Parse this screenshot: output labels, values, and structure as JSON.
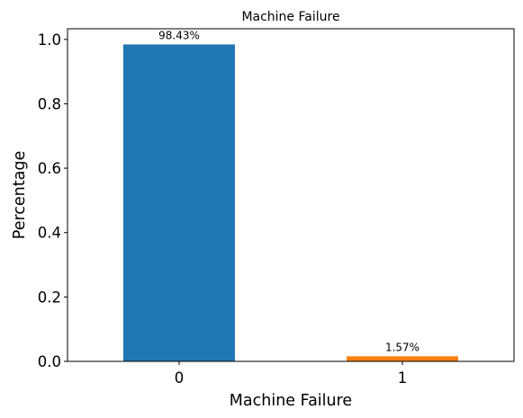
{
  "chart_data": {
    "type": "bar",
    "title": "Machine Failure",
    "xlabel": "Machine Failure",
    "ylabel": "Percentage",
    "categories": [
      "0",
      "1"
    ],
    "values": [
      0.9843,
      0.0157
    ],
    "data_labels": [
      "98.43%",
      "1.57%"
    ],
    "bar_colors": [
      "#1f77b4",
      "#ff7f0e"
    ],
    "ylim": [
      0,
      1.033
    ],
    "yticks": [
      0.0,
      0.2,
      0.4,
      0.6,
      0.8,
      1.0
    ],
    "ytick_labels": [
      "0.0",
      "0.2",
      "0.4",
      "0.6",
      "0.8",
      "1.0"
    ],
    "grid": false,
    "legend": "none"
  }
}
